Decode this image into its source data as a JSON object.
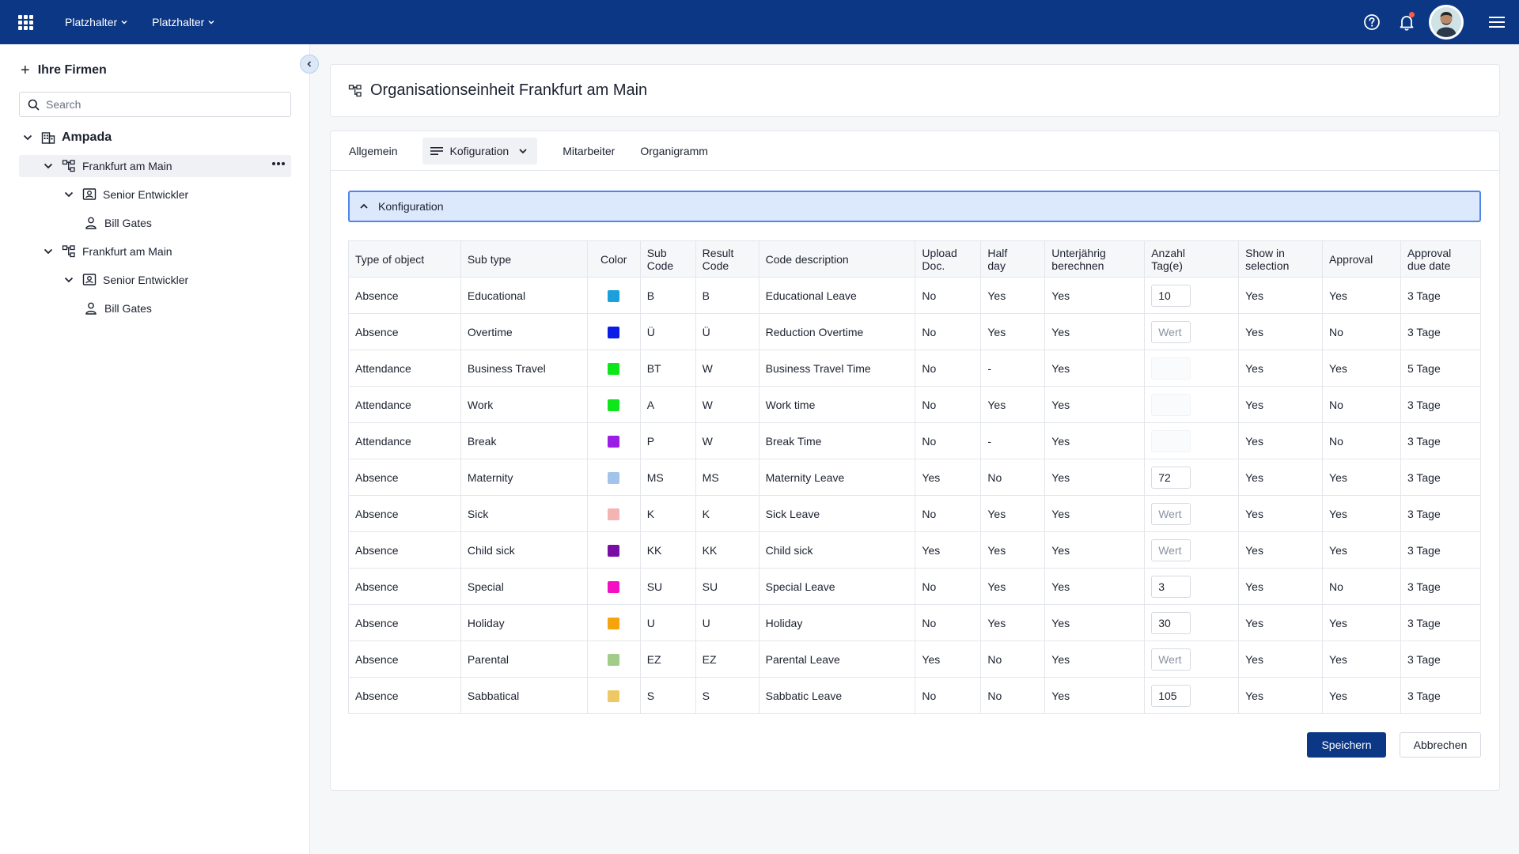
{
  "topbar": {
    "menus": [
      "Platzhalter",
      "Platzhalter"
    ],
    "icons": [
      "apps-grid-icon",
      "help-icon",
      "bell-icon",
      "avatar",
      "hamburger-menu-icon"
    ]
  },
  "sidebar": {
    "heading": "Ihre Firmen",
    "search_placeholder": "Search",
    "tree": [
      {
        "label": "Ampada",
        "level": 0,
        "icon": "building-icon"
      },
      {
        "label": "Frankfurt am Main",
        "level": 1,
        "icon": "org-unit-icon",
        "selected": true
      },
      {
        "label": "Senior Entwickler",
        "level": 2,
        "icon": "position-icon"
      },
      {
        "label": "Bill Gates",
        "level": 3,
        "icon": "person-icon"
      },
      {
        "label": "Frankfurt am Main",
        "level": 1,
        "icon": "org-unit-icon"
      },
      {
        "label": "Senior Entwickler",
        "level": 2,
        "icon": "position-icon"
      },
      {
        "label": "Bill Gates",
        "level": 3,
        "icon": "person-icon"
      }
    ]
  },
  "page": {
    "title_prefix": "Organisationseinheit",
    "title_name": "Frankfurt am Main"
  },
  "tabs": [
    {
      "label": "Allgemein"
    },
    {
      "label": "Kofiguration",
      "active": true
    },
    {
      "label": "Mitarbeiter"
    },
    {
      "label": "Organigramm"
    }
  ],
  "accordion": {
    "label": "Konfiguration"
  },
  "table": {
    "columns": [
      [
        "Type of object"
      ],
      [
        "Sub type"
      ],
      [
        "Color"
      ],
      [
        "Sub",
        "Code"
      ],
      [
        "Result",
        "Code"
      ],
      [
        "Code description"
      ],
      [
        "Upload",
        "Doc."
      ],
      [
        "Half",
        "day"
      ],
      [
        "Unterjährig",
        "berechnen"
      ],
      [
        "Anzahl",
        "Tag(e)"
      ],
      [
        "Show in",
        "selection"
      ],
      [
        "Approval"
      ],
      [
        "Approval",
        "due date"
      ]
    ],
    "placeholder": "Wert",
    "rows": [
      {
        "type": "Absence",
        "sub": "Educational",
        "color": "#1aa0dc",
        "subcode": "B",
        "result": "B",
        "desc": "Educational Leave",
        "upload": "No",
        "half": "Yes",
        "unterj": "Yes",
        "days": "10",
        "days_state": "value",
        "show": "Yes",
        "approval": "Yes",
        "due": "3 Tage"
      },
      {
        "type": "Absence",
        "sub": "Overtime",
        "color": "#0a1de6",
        "subcode": "Ü",
        "result": "Ü",
        "desc": "Reduction Overtime",
        "upload": "No",
        "half": "Yes",
        "unterj": "Yes",
        "days": "",
        "days_state": "placeholder",
        "show": "Yes",
        "approval": "No",
        "due": "3 Tage"
      },
      {
        "type": "Attendance",
        "sub": "Business Travel",
        "color": "#0ee61a",
        "subcode": "BT",
        "result": "W",
        "desc": "Business Travel Time",
        "upload": "No",
        "half": "-",
        "unterj": "Yes",
        "days": "",
        "days_state": "empty",
        "show": "Yes",
        "approval": "Yes",
        "due": "5 Tage"
      },
      {
        "type": "Attendance",
        "sub": "Work",
        "color": "#0ee61a",
        "subcode": "A",
        "result": "W",
        "desc": "Work time",
        "upload": "No",
        "half": "Yes",
        "unterj": "Yes",
        "days": "",
        "days_state": "empty",
        "show": "Yes",
        "approval": "No",
        "due": "3 Tage"
      },
      {
        "type": "Attendance",
        "sub": "Break",
        "color": "#9b1ee6",
        "subcode": "P",
        "result": "W",
        "desc": "Break Time",
        "upload": "No",
        "half": "-",
        "unterj": "Yes",
        "days": "",
        "days_state": "empty",
        "show": "Yes",
        "approval": "No",
        "due": "3 Tage"
      },
      {
        "type": "Absence",
        "sub": "Maternity",
        "color": "#a2c4ea",
        "subcode": "MS",
        "result": "MS",
        "desc": "Maternity Leave",
        "upload": "Yes",
        "half": "No",
        "unterj": "Yes",
        "days": "72",
        "days_state": "value",
        "show": "Yes",
        "approval": "Yes",
        "due": "3 Tage"
      },
      {
        "type": "Absence",
        "sub": "Sick",
        "color": "#f4b4b4",
        "subcode": "K",
        "result": "K",
        "desc": "Sick Leave",
        "upload": "No",
        "half": "Yes",
        "unterj": "Yes",
        "days": "",
        "days_state": "placeholder",
        "show": "Yes",
        "approval": "Yes",
        "due": "3 Tage"
      },
      {
        "type": "Absence",
        "sub": "Child sick",
        "color": "#7a0ea4",
        "subcode": "KK",
        "result": "KK",
        "desc": "Child sick",
        "upload": "Yes",
        "half": "Yes",
        "unterj": "Yes",
        "days": "",
        "days_state": "placeholder",
        "show": "Yes",
        "approval": "Yes",
        "due": "3 Tage"
      },
      {
        "type": "Absence",
        "sub": "Special",
        "color": "#f40ec4",
        "subcode": "SU",
        "result": "SU",
        "desc": "Special Leave",
        "upload": "No",
        "half": "Yes",
        "unterj": "Yes",
        "days": "3",
        "days_state": "value",
        "show": "Yes",
        "approval": "No",
        "due": "3 Tage"
      },
      {
        "type": "Absence",
        "sub": "Holiday",
        "color": "#f6a40e",
        "subcode": "U",
        "result": "U",
        "desc": "Holiday",
        "upload": "No",
        "half": "Yes",
        "unterj": "Yes",
        "days": "30",
        "days_state": "value",
        "show": "Yes",
        "approval": "Yes",
        "due": "3 Tage"
      },
      {
        "type": "Absence",
        "sub": "Parental",
        "color": "#a2cc8a",
        "subcode": "EZ",
        "result": "EZ",
        "desc": "Parental Leave",
        "upload": "Yes",
        "half": "No",
        "unterj": "Yes",
        "days": "",
        "days_state": "placeholder",
        "show": "Yes",
        "approval": "Yes",
        "due": "3 Tage"
      },
      {
        "type": "Absence",
        "sub": "Sabbatical",
        "color": "#eec864",
        "subcode": "S",
        "result": "S",
        "desc": "Sabbatic Leave",
        "upload": "No",
        "half": "No",
        "unterj": "Yes",
        "days": "105",
        "days_state": "value",
        "show": "Yes",
        "approval": "Yes",
        "due": "3 Tage"
      }
    ]
  },
  "actions": {
    "save_label": "Speichern",
    "cancel_label": "Abbrechen"
  },
  "colors": {
    "topbar": "#0b3785",
    "accent": "#4f86e8",
    "primary_button": "#0b3785"
  }
}
